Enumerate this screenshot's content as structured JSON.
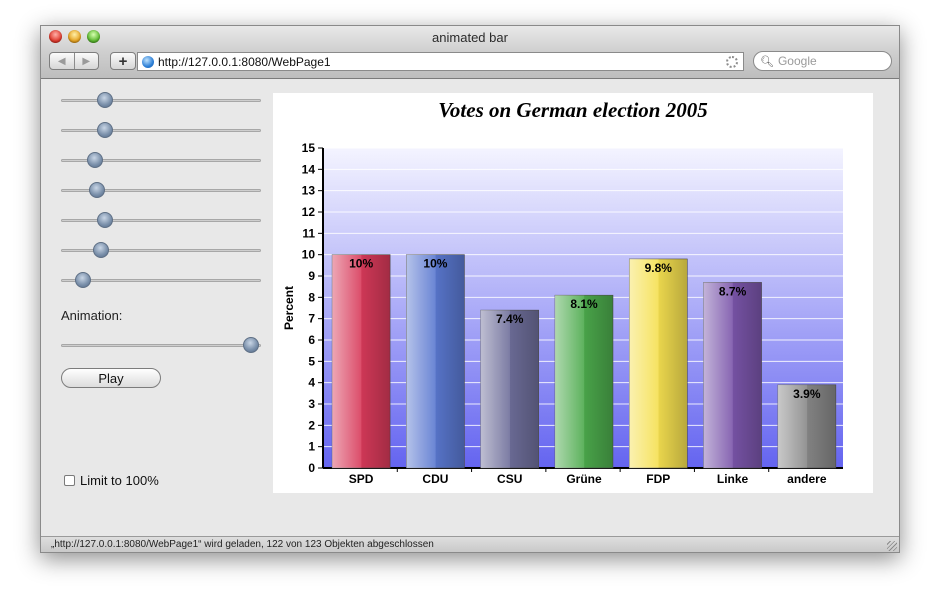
{
  "window": {
    "title": "animated bar",
    "url": "http://127.0.0.1:8080/WebPage1",
    "search_placeholder": "Google",
    "status": "„http://127.0.0.1:8080/WebPage1“ wird geladen, 122 von 123 Objekten abgeschlossen",
    "icons": [
      "back-icon",
      "forward-icon",
      "plus-icon",
      "globe-icon",
      "spinner-icon",
      "search-icon",
      "resize-grip-icon"
    ]
  },
  "controls": {
    "sliders": [
      0.22,
      0.22,
      0.17,
      0.18,
      0.22,
      0.2,
      0.11
    ],
    "animation_label": "Animation:",
    "animation_value": 0.95,
    "play_label": "Play",
    "limit_label": "Limit to 100%",
    "limit_checked": false
  },
  "chart_data": {
    "type": "bar",
    "title": "Votes on German election 2005",
    "xlabel": "",
    "ylabel": "Percent",
    "ylim": [
      0,
      15
    ],
    "yticks": [
      0,
      1,
      2,
      3,
      4,
      5,
      6,
      7,
      8,
      9,
      10,
      11,
      12,
      13,
      14,
      15
    ],
    "grid": true,
    "categories": [
      "SPD",
      "CDU",
      "CSU",
      "Grüne",
      "FDP",
      "Linke",
      "andere"
    ],
    "values": [
      10,
      10,
      7.4,
      8.1,
      9.8,
      8.7,
      3.9
    ],
    "data_labels": [
      "10%",
      "10%",
      "7.4%",
      "8.1%",
      "9.8%",
      "8.7%",
      "3.9%"
    ],
    "colors": [
      "#d83a5a",
      "#5a78d0",
      "#6e6e9a",
      "#4caa4c",
      "#f5e050",
      "#7a55aa",
      "#888888"
    ]
  }
}
